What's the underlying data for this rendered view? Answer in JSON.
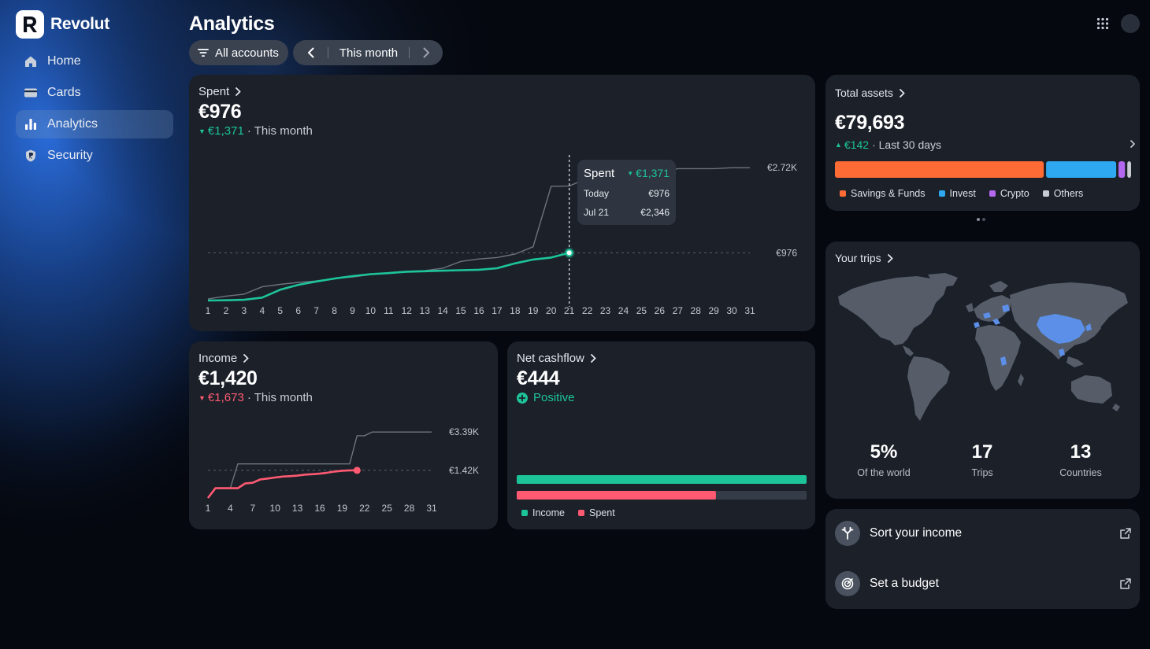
{
  "app": {
    "name": "Revolut"
  },
  "sidebar": {
    "items": [
      {
        "label": "Home",
        "icon": "home-icon"
      },
      {
        "label": "Cards",
        "icon": "card-icon"
      },
      {
        "label": "Analytics",
        "icon": "analytics-icon",
        "active": true
      },
      {
        "label": "Security",
        "icon": "shield-icon"
      }
    ]
  },
  "header": {
    "title": "Analytics"
  },
  "filters": {
    "accounts_label": "All accounts",
    "period_label": "This month"
  },
  "spent": {
    "title": "Spent",
    "amount": "€976",
    "delta": "€1,371",
    "delta_suffix": "· This month",
    "tooltip": {
      "title": "Spent",
      "delta": "€1,371",
      "rows": [
        {
          "label": "Today",
          "value": "€976"
        },
        {
          "label": "Jul 21",
          "value": "€2,346"
        }
      ]
    },
    "chart_data": {
      "type": "line",
      "x": [
        1,
        2,
        3,
        4,
        5,
        6,
        7,
        8,
        9,
        10,
        11,
        12,
        13,
        14,
        15,
        16,
        17,
        18,
        19,
        20,
        21,
        22,
        23,
        24,
        25,
        26,
        27,
        28,
        29,
        30,
        31
      ],
      "tick_labels": [
        "1",
        "2",
        "3",
        "4",
        "5",
        "6",
        "7",
        "8",
        "9",
        "10",
        "11",
        "12",
        "13",
        "14",
        "15",
        "16",
        "17",
        "18",
        "19",
        "20",
        "21",
        "22",
        "23",
        "24",
        "25",
        "26",
        "27",
        "28",
        "29",
        "30",
        "31"
      ],
      "current_values": [
        0,
        5,
        15,
        60,
        220,
        320,
        390,
        450,
        500,
        540,
        560,
        590,
        600,
        610,
        620,
        630,
        660,
        760,
        840,
        880,
        976
      ],
      "previous_values": [
        30,
        90,
        130,
        280,
        330,
        370,
        400,
        450,
        480,
        530,
        570,
        600,
        610,
        660,
        800,
        850,
        880,
        950,
        1100,
        2340,
        2346,
        2500,
        2500,
        2600,
        2600,
        2600,
        2700,
        2700,
        2700,
        2720,
        2720
      ],
      "reference_lines": [
        {
          "label": "€2.72K",
          "value": 2720
        },
        {
          "label": "€976",
          "value": 976
        }
      ],
      "highlight_x": 21,
      "ylim": [
        0,
        2900
      ]
    }
  },
  "income": {
    "title": "Income",
    "amount": "€1,420",
    "delta": "€1,673",
    "delta_suffix": "· This month",
    "chart_data": {
      "type": "line",
      "x": [
        1,
        2,
        3,
        4,
        5,
        6,
        7,
        8,
        9,
        10,
        11,
        12,
        13,
        14,
        15,
        16,
        17,
        18,
        19,
        20,
        21,
        22,
        23,
        24,
        25,
        26,
        27,
        28,
        29,
        30,
        31
      ],
      "tick_labels": [
        "1",
        "4",
        "7",
        "10",
        "13",
        "16",
        "19",
        "22",
        "25",
        "28",
        "31"
      ],
      "current_values": [
        0,
        500,
        500,
        500,
        500,
        750,
        780,
        950,
        1000,
        1050,
        1100,
        1120,
        1150,
        1200,
        1220,
        1250,
        1300,
        1360,
        1400,
        1420,
        1420
      ],
      "previous_values": [
        0,
        500,
        500,
        500,
        1750,
        1750,
        1750,
        1750,
        1750,
        1750,
        1750,
        1750,
        1750,
        1750,
        1750,
        1750,
        1750,
        1750,
        1750,
        1750,
        3200,
        3200,
        3390,
        3390,
        3390,
        3390,
        3390,
        3390,
        3390,
        3390,
        3390
      ],
      "reference_lines": [
        {
          "label": "€3.39K",
          "value": 3390
        },
        {
          "label": "€1.42K",
          "value": 1420
        }
      ],
      "highlight_x": 21,
      "ylim": [
        0,
        3600
      ]
    }
  },
  "cashflow": {
    "title": "Net cashflow",
    "amount": "€444",
    "status": "Positive",
    "chart_data": {
      "type": "bar",
      "orientation": "horizontal",
      "categories": [
        "Income",
        "Spent"
      ],
      "values": [
        1420,
        976
      ],
      "colors": [
        "#1dc49a",
        "#ff5a72"
      ],
      "max": 1420
    },
    "legend": [
      {
        "label": "Income",
        "color": "#1dc49a"
      },
      {
        "label": "Spent",
        "color": "#ff5a72"
      }
    ]
  },
  "assets": {
    "title": "Total assets",
    "amount": "€79,693",
    "delta": "€142",
    "delta_suffix": "· Last 30 days",
    "chart_data": {
      "type": "bar",
      "orientation": "stacked-horizontal",
      "categories": [
        "Savings & Funds",
        "Invest",
        "Crypto",
        "Others"
      ],
      "values": [
        71.5,
        24.0,
        2.2,
        1.3
      ],
      "colors": [
        "#ff6b35",
        "#2ea8f0",
        "#b468f0",
        "#c8ccd2"
      ]
    },
    "legend": [
      {
        "label": "Savings & Funds",
        "color": "#ff6b35"
      },
      {
        "label": "Invest",
        "color": "#2ea8f0"
      },
      {
        "label": "Crypto",
        "color": "#b468f0"
      },
      {
        "label": "Others",
        "color": "#c8ccd2"
      }
    ]
  },
  "trips": {
    "title": "Your trips",
    "stats": [
      {
        "value": "5%",
        "label": "Of the world"
      },
      {
        "value": "17",
        "label": "Trips"
      },
      {
        "value": "13",
        "label": "Countries"
      }
    ]
  },
  "links": [
    {
      "label": "Sort your income",
      "icon": "split-icon"
    },
    {
      "label": "Set a budget",
      "icon": "target-icon"
    }
  ]
}
